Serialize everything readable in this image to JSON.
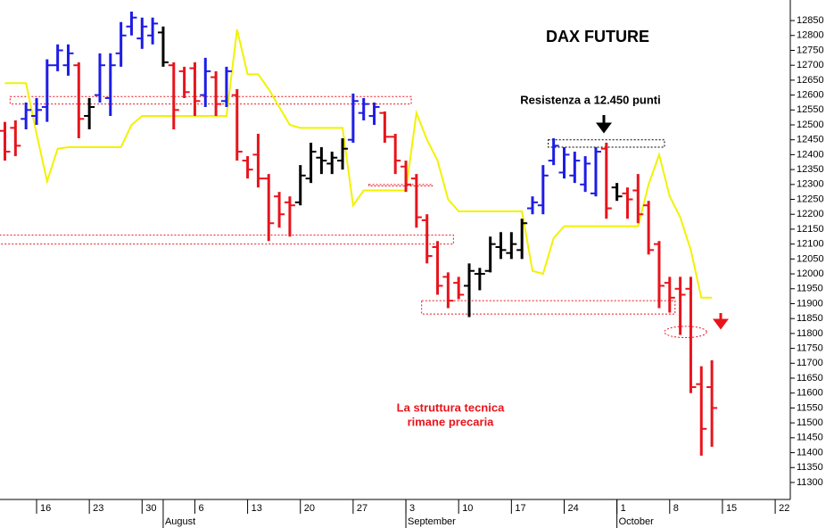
{
  "chart_data": {
    "type": "ohlc",
    "title": "DAX FUTURE",
    "annotations": [
      {
        "text": "Resistenza a 12.450 punti"
      },
      {
        "lines": [
          "La struttura tecnica",
          "rimane precaria"
        ]
      }
    ],
    "categories": [
      null,
      null,
      null,
      "16",
      null,
      null,
      null,
      null,
      "23",
      null,
      null,
      null,
      null,
      "30",
      null,
      null,
      null,
      null,
      "6",
      null,
      null,
      null,
      null,
      "13",
      null,
      null,
      null,
      null,
      "20",
      null,
      null,
      null,
      null,
      "27",
      null,
      null,
      null,
      null,
      "3",
      null,
      null,
      null,
      null,
      "10",
      null,
      null,
      null,
      null,
      "17",
      null,
      null,
      null,
      null,
      "24",
      null,
      null,
      null,
      null,
      "1",
      null,
      null,
      null,
      null,
      "8",
      null,
      null,
      null,
      null,
      "15",
      null,
      null,
      null,
      null,
      "22",
      null
    ],
    "months": [
      {
        "name": "August",
        "category": 15
      },
      {
        "name": "September",
        "category": 38
      },
      {
        "name": "October",
        "category": 58
      }
    ],
    "open": [
      12480,
      12490,
      12520,
      12530,
      12560,
      12700,
      12700,
      12700,
      12530,
      12600,
      12590,
      12740,
      12830,
      12790,
      12800,
      12810,
      12700,
      12680,
      12690,
      12600,
      12660,
      12580,
      12600,
      12380,
      12400,
      12320,
      12260,
      12240,
      12240,
      12320,
      12390,
      12370,
      12380,
      12450,
      12540,
      12530,
      12540,
      12460,
      12360,
      12320,
      12180,
      12090,
      11990,
      11970,
      11960,
      12000,
      12010,
      12090,
      12070,
      12080,
      12220,
      12230,
      12380,
      12340,
      12330,
      12300,
      12270,
      12420,
      12290,
      12270,
      12280,
      12230,
      12100,
      11970,
      11950,
      11950,
      11630,
      11620,
      null,
      null,
      null,
      null,
      null,
      null,
      null
    ],
    "high": [
      12510,
      12515,
      12575,
      12590,
      12720,
      12770,
      12770,
      12710,
      12590,
      12740,
      12740,
      12845,
      12880,
      12860,
      12860,
      12830,
      12710,
      12695,
      12710,
      12725,
      12680,
      12695,
      12620,
      12395,
      12470,
      12335,
      12275,
      12260,
      12365,
      12440,
      12425,
      12410,
      12455,
      12605,
      12590,
      12575,
      12545,
      12470,
      12380,
      12335,
      12200,
      12110,
      12005,
      11990,
      12035,
      12020,
      12125,
      12140,
      12140,
      12185,
      12260,
      12365,
      12455,
      12425,
      12410,
      12395,
      12425,
      12440,
      12305,
      12290,
      12335,
      12245,
      12110,
      11990,
      11990,
      11990,
      11690,
      11710,
      null,
      null,
      null,
      null,
      null,
      null,
      null
    ],
    "low": [
      12380,
      12395,
      12485,
      12500,
      12510,
      12680,
      12665,
      12455,
      12485,
      12575,
      12530,
      12695,
      12800,
      12755,
      12770,
      12695,
      12485,
      12590,
      12530,
      12560,
      12530,
      12560,
      12380,
      12320,
      12290,
      12110,
      12155,
      12125,
      12230,
      12305,
      12335,
      12335,
      12350,
      12440,
      12515,
      12500,
      12440,
      12335,
      12275,
      12155,
      12035,
      11930,
      11885,
      11915,
      11855,
      11945,
      12005,
      12050,
      12050,
      12050,
      12200,
      12200,
      12365,
      12320,
      12305,
      12275,
      12260,
      12185,
      12245,
      12185,
      12170,
      12065,
      11885,
      11870,
      11795,
      11600,
      11390,
      11420,
      null,
      null,
      null,
      null,
      null,
      null,
      null
    ],
    "close": [
      12410,
      12430,
      12550,
      12550,
      12700,
      12750,
      12740,
      12520,
      12560,
      12700,
      12700,
      12800,
      12860,
      12830,
      12840,
      12710,
      12550,
      12610,
      12580,
      12680,
      12570,
      12680,
      12410,
      12350,
      12320,
      12170,
      12200,
      12230,
      12330,
      12410,
      12380,
      12390,
      12420,
      12580,
      12570,
      12560,
      12460,
      12380,
      12300,
      12190,
      12060,
      11960,
      11910,
      11930,
      12010,
      12000,
      12100,
      12080,
      12100,
      12170,
      12240,
      12330,
      12430,
      12400,
      12380,
      12370,
      12410,
      12220,
      12260,
      12250,
      12200,
      12080,
      11960,
      11920,
      11930,
      11620,
      11480,
      11550,
      null,
      null,
      null,
      null,
      null,
      null,
      null
    ],
    "colors": [
      "#e8141c",
      "#e8141c",
      "#1d1de6",
      "#1d1de6",
      "#1d1de6",
      "#1d1de6",
      "#1d1de6",
      "#e8141c",
      "#000000",
      "#1d1de6",
      "#1d1de6",
      "#1d1de6",
      "#1d1de6",
      "#1d1de6",
      "#1d1de6",
      "#000000",
      "#e8141c",
      "#e8141c",
      "#e8141c",
      "#1d1de6",
      "#e8141c",
      "#1d1de6",
      "#e8141c",
      "#e8141c",
      "#e8141c",
      "#e8141c",
      "#e8141c",
      "#e8141c",
      "#000000",
      "#000000",
      "#000000",
      "#000000",
      "#000000",
      "#1d1de6",
      "#1d1de6",
      "#1d1de6",
      "#e8141c",
      "#e8141c",
      "#e8141c",
      "#e8141c",
      "#e8141c",
      "#e8141c",
      "#e8141c",
      "#e8141c",
      "#000000",
      "#000000",
      "#000000",
      "#000000",
      "#000000",
      "#000000",
      "#1d1de6",
      "#1d1de6",
      "#1d1de6",
      "#1d1de6",
      "#1d1de6",
      "#1d1de6",
      "#1d1de6",
      "#e8141c",
      "#000000",
      "#e8141c",
      "#e8141c",
      "#e8141c",
      "#e8141c",
      "#e8141c",
      "#e8141c",
      "#e8141c",
      "#e8141c",
      "#e8141c",
      null,
      null,
      null,
      null,
      null,
      null,
      null
    ],
    "lines": [
      {
        "color": "#f2f200",
        "values": [
          12640,
          12640,
          12640,
          12470,
          12310,
          12420,
          12425,
          12425,
          12425,
          12425,
          12425,
          12425,
          12500,
          12530,
          12530,
          12530,
          12530,
          12530,
          12530,
          12530,
          12530,
          12530,
          12820,
          12670,
          12670,
          12620,
          12560,
          12500,
          12490,
          12490,
          12490,
          12490,
          12490,
          12230,
          12280,
          12280,
          12280,
          12280,
          12280,
          12540,
          12450,
          12380,
          12250,
          12210,
          12210,
          12210,
          12210,
          12210,
          12210,
          12210,
          12010,
          12000,
          12120,
          12160,
          12160,
          12160,
          12160,
          12160,
          12160,
          12160,
          12160,
          12300,
          12400,
          12260,
          12190,
          12080,
          11920,
          11920,
          null,
          null,
          null,
          null,
          null,
          null,
          null
        ]
      }
    ],
    "zones": [
      {
        "shape": "rect",
        "from": 1,
        "to": 38,
        "low": 12570,
        "high": 12595,
        "color": "#e8141c"
      },
      {
        "shape": "rect",
        "from": 0,
        "to": 42,
        "low": 12100,
        "high": 12130,
        "color": "#e8141c"
      },
      {
        "shape": "rect",
        "from": 35,
        "to": 40,
        "low": 12295,
        "high": 12300,
        "color": "#e8141c"
      },
      {
        "shape": "rect",
        "from": 40,
        "to": 63,
        "low": 11865,
        "high": 11910,
        "color": "#e8141c"
      },
      {
        "shape": "rect",
        "from": 52,
        "to": 62,
        "low": 12425,
        "high": 12450,
        "color": "#000000"
      },
      {
        "shape": "ellipse",
        "from": 63,
        "to": 66,
        "low": 11795,
        "high": 11815,
        "color": "#e8141c"
      }
    ],
    "ylim": [
      11243,
      12919
    ],
    "yticks": [
      11300,
      11350,
      11400,
      11450,
      11500,
      11550,
      11600,
      11650,
      11700,
      11750,
      11800,
      11850,
      11900,
      11950,
      12000,
      12050,
      12100,
      12150,
      12200,
      12250,
      12300,
      12350,
      12400,
      12450,
      12500,
      12550,
      12600,
      12650,
      12700,
      12750,
      12800,
      12850
    ]
  }
}
